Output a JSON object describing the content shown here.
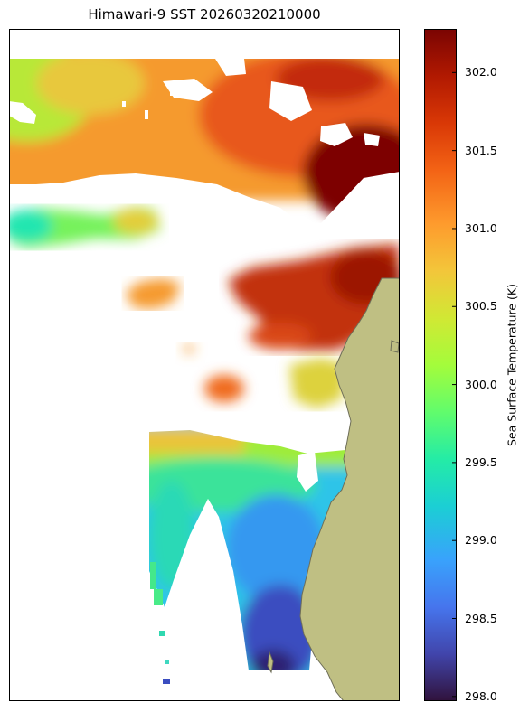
{
  "title": "Himawari-9 SST 20260320210000",
  "colorbar": {
    "label": "Sea Surface Temperature (K)",
    "min": 297.97,
    "max": 302.28,
    "ticks": [
      "302.0",
      "301.5",
      "301.0",
      "300.5",
      "300.0",
      "299.5",
      "299.0",
      "298.5",
      "298.0"
    ],
    "tick_values": [
      302.0,
      301.5,
      301.0,
      300.5,
      300.0,
      299.5,
      299.0,
      298.5,
      298.0
    ],
    "colormap": "turbo"
  },
  "colors": {
    "land": "#bfbf83",
    "coast": "#6e6e58",
    "no_data": "#ffffff",
    "frame": "#000000"
  }
}
